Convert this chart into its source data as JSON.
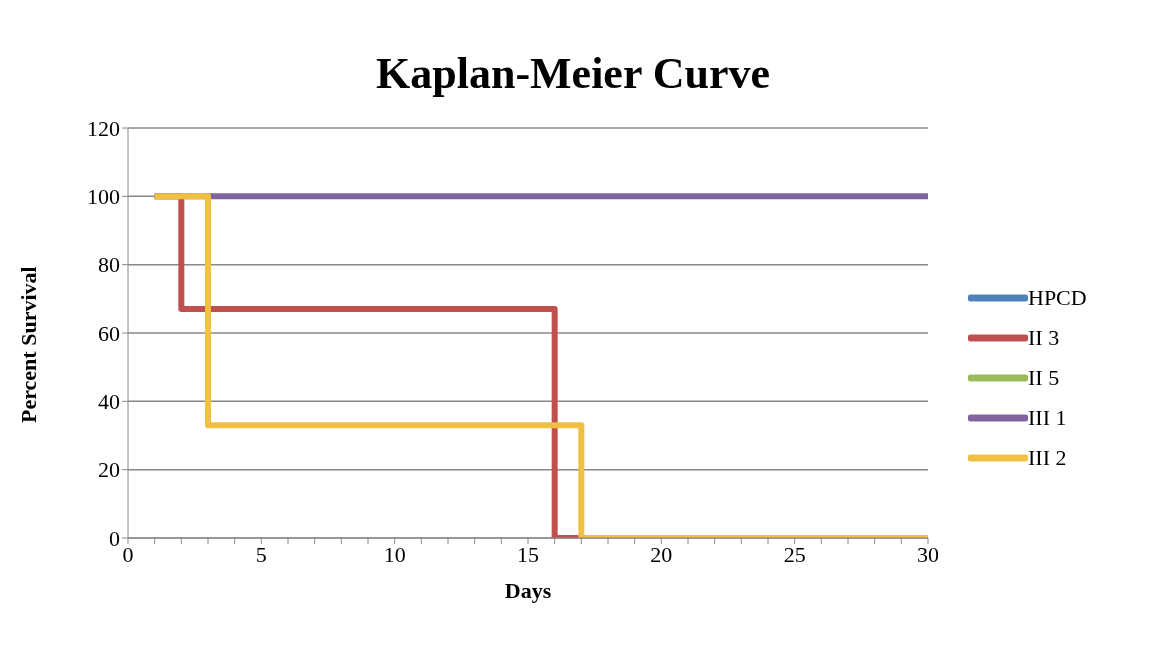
{
  "chart_data": {
    "type": "line",
    "title": "Kaplan-Meier Curve",
    "xlabel": "Days",
    "ylabel": "Percent Survival",
    "xlim": [
      0,
      30
    ],
    "ylim": [
      0,
      120
    ],
    "xticks": [
      0,
      {
        "value": 1,
        "label": null
      },
      {
        "value": 2,
        "label": null
      },
      {
        "value": 3,
        "label": null
      },
      {
        "value": 4,
        "label": null
      },
      5,
      {
        "value": 6,
        "label": null
      },
      {
        "value": 7,
        "label": null
      },
      {
        "value": 8,
        "label": null
      },
      {
        "value": 9,
        "label": null
      },
      10,
      {
        "value": 11,
        "label": null
      },
      {
        "value": 12,
        "label": null
      },
      {
        "value": 13,
        "label": null
      },
      {
        "value": 14,
        "label": null
      },
      15,
      {
        "value": 16,
        "label": null
      },
      {
        "value": 17,
        "label": null
      },
      {
        "value": 18,
        "label": null
      },
      {
        "value": 19,
        "label": null
      },
      20,
      {
        "value": 21,
        "label": null
      },
      {
        "value": 22,
        "label": null
      },
      {
        "value": 23,
        "label": null
      },
      {
        "value": 24,
        "label": null
      },
      25,
      {
        "value": 26,
        "label": null
      },
      {
        "value": 27,
        "label": null
      },
      {
        "value": 28,
        "label": null
      },
      {
        "value": 29,
        "label": null
      },
      30
    ],
    "yticks": [
      0,
      20,
      40,
      60,
      80,
      100,
      120
    ],
    "grid": "y",
    "legend": "right",
    "marker": "none",
    "line_style": "solid",
    "series": [
      {
        "name": "HPCD",
        "color": "#4f81bd"
      },
      {
        "name": "II 3",
        "color": "#c0504d",
        "x": [
          1,
          2,
          2,
          16,
          16,
          30
        ],
        "values": [
          100,
          100,
          67,
          67,
          0,
          0
        ]
      },
      {
        "name": "II 5",
        "color": "#9bbb59"
      },
      {
        "name": "III 1",
        "color": "#8064a2",
        "x": [
          1,
          30
        ],
        "values": [
          100,
          100
        ]
      },
      {
        "name": "III 2",
        "color": "#f0c040",
        "x": [
          1,
          3,
          3,
          17,
          17,
          30
        ],
        "values": [
          100,
          100,
          33,
          33,
          0,
          0
        ]
      }
    ]
  }
}
